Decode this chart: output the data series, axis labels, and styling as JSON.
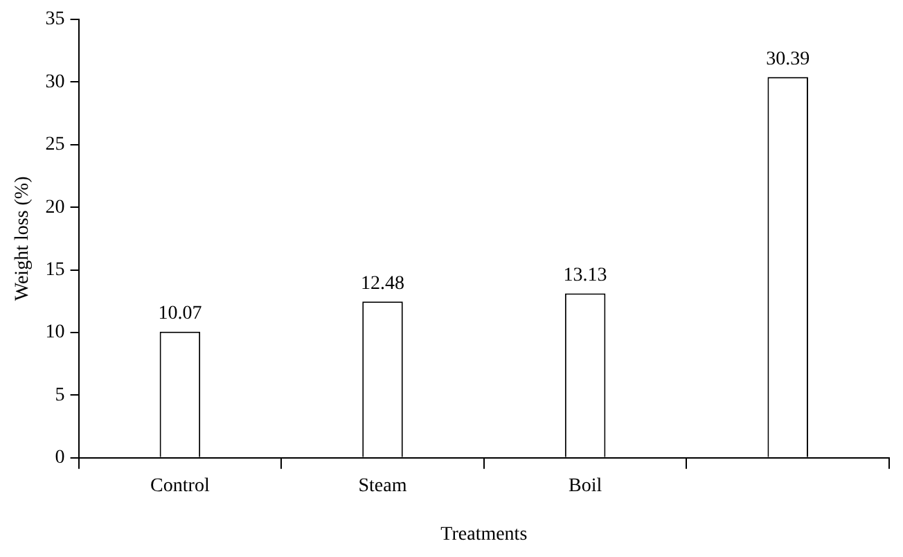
{
  "chart_data": {
    "type": "bar",
    "xlabel": "Treatments",
    "ylabel": "Weight loss (%)",
    "categories": [
      "Control",
      "Steam",
      "Boil",
      null
    ],
    "values": [
      10.07,
      12.48,
      13.13,
      30.39
    ],
    "color": "#ffffff",
    "ylim": [
      0,
      35
    ],
    "yticks": [
      0,
      5,
      10,
      15,
      20,
      25,
      30,
      35
    ],
    "grid": false,
    "legend": false,
    "data_labels": true
  }
}
